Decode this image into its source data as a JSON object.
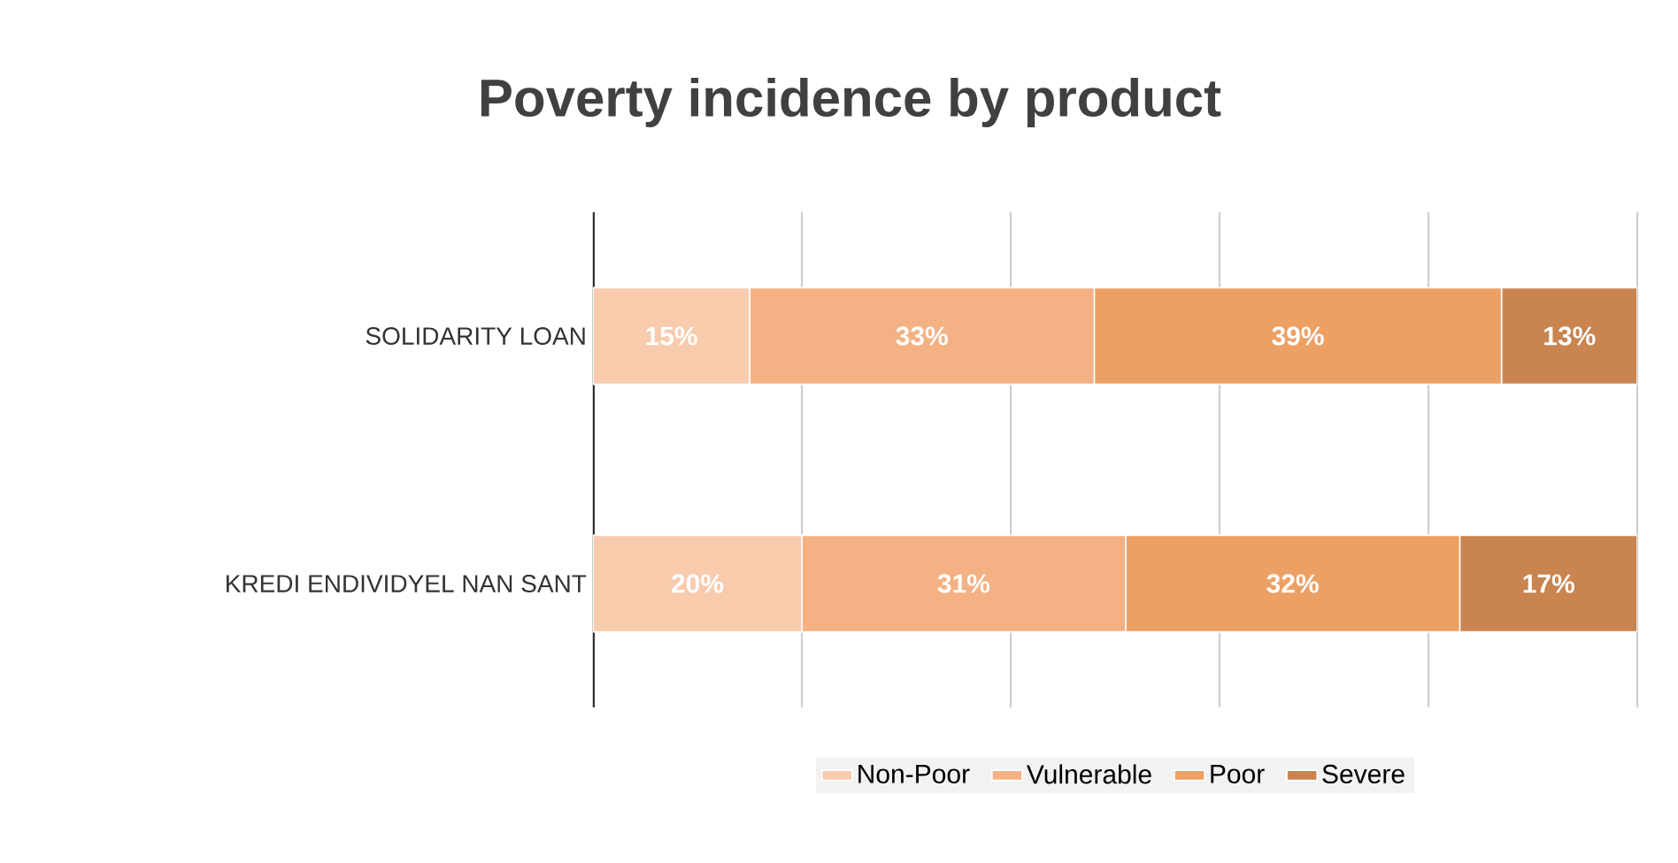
{
  "chart_data": {
    "type": "bar",
    "orientation": "horizontal",
    "stacked": true,
    "title": "Poverty incidence by product",
    "categories": [
      "SOLIDARITY LOAN",
      "KREDI ENDIVIDYEL NAN SANT"
    ],
    "series": [
      {
        "name": "Non-Poor",
        "color": "#f8cbad",
        "values": [
          15,
          20
        ],
        "value_labels": [
          "15%",
          "20%"
        ]
      },
      {
        "name": "Vulnerable",
        "color": "#f4b183",
        "values": [
          33,
          31
        ],
        "value_labels": [
          "33%",
          "31%"
        ]
      },
      {
        "name": "Poor",
        "color": "#eda064",
        "values": [
          39,
          32
        ],
        "value_labels": [
          "39%",
          "32%"
        ]
      },
      {
        "name": "Severe",
        "color": "#c9844f",
        "values": [
          13,
          17
        ],
        "value_labels": [
          "13%",
          "17%"
        ]
      }
    ],
    "xlim": [
      0,
      100
    ],
    "xticks": [
      {
        "value": 0,
        "label": null
      },
      {
        "value": 20,
        "label": null
      },
      {
        "value": 40,
        "label": null
      },
      {
        "value": 60,
        "label": null
      },
      {
        "value": 80,
        "label": null
      },
      {
        "value": 100,
        "label": null
      }
    ],
    "tick_labels": "y",
    "grid": "x",
    "legend": "bottom"
  }
}
